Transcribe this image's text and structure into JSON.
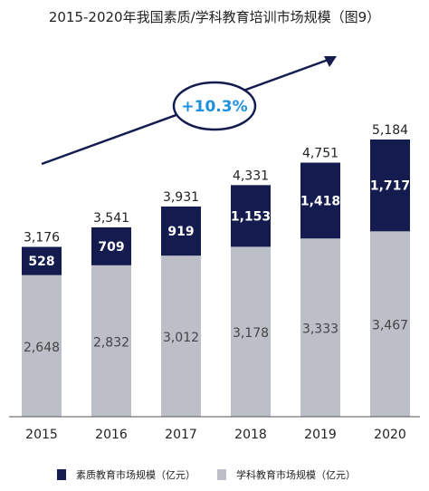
{
  "chart_data": {
    "type": "bar",
    "stacked": true,
    "title": "2015-2020年我国素质/学科教育培训市场规模（图9）",
    "categories": [
      "2015",
      "2016",
      "2017",
      "2018",
      "2019",
      "2020"
    ],
    "series": [
      {
        "name": "学科教育市场规模（亿元）",
        "values": [
          2648,
          2832,
          3012,
          3178,
          3333,
          3467
        ],
        "color": "#bcbec8"
      },
      {
        "name": "素质教育市场规模（亿元）",
        "values": [
          528,
          709,
          919,
          1153,
          1418,
          1717
        ],
        "color": "#141b4f"
      }
    ],
    "totals": [
      3176,
      3541,
      3931,
      4331,
      4751,
      5184
    ],
    "value_labels": {
      "bottom": [
        "2,648",
        "2,832",
        "3,012",
        "3,178",
        "3,333",
        "3,467"
      ],
      "top": [
        "528",
        "709",
        "919",
        "1,153",
        "1,418",
        "1,717"
      ],
      "totals": [
        "3,176",
        "3,541",
        "3,931",
        "4,331",
        "4,751",
        "5,184"
      ]
    },
    "annotation": "+10.3%",
    "legend_order": [
      "素质教育市场规模（亿元）",
      "学科教育市场规模（亿元）"
    ],
    "legend_position": "bottom",
    "ylim": [
      0,
      5500
    ],
    "grid": false,
    "arrow_color": "#141b4f"
  }
}
